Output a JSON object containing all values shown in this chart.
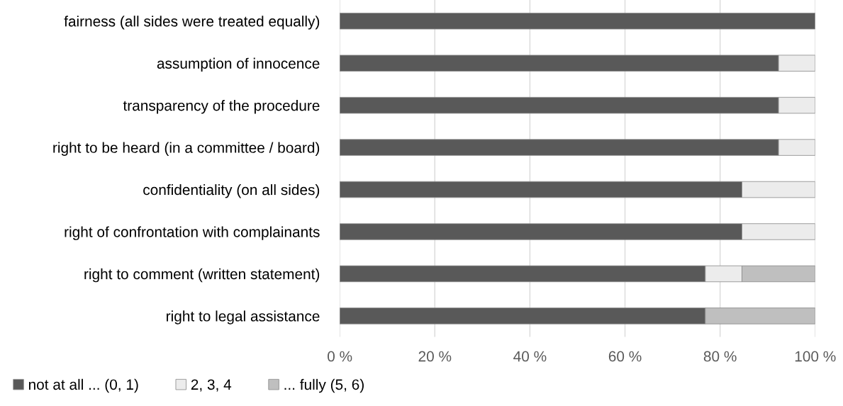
{
  "chart_data": {
    "type": "bar",
    "orientation": "horizontal",
    "stacked": true,
    "categories": [
      "fairness (all sides were treated equally)",
      "assumption of innocence",
      "transparency of the procedure",
      "right to be heard (in a committee / board)",
      "confidentiality (on all sides)",
      "right of confrontation with complainants",
      "right to comment (written statement)",
      "right to legal assistance"
    ],
    "series": [
      {
        "name": "not at all ... (0, 1)",
        "color": "#595959",
        "values": [
          100,
          92.3,
          92.3,
          92.3,
          84.6,
          84.6,
          76.9,
          76.9
        ]
      },
      {
        "name": "2, 3, 4",
        "color": "#ececec",
        "values": [
          0,
          7.7,
          7.7,
          7.7,
          15.4,
          15.4,
          7.7,
          0
        ]
      },
      {
        "name": "... fully (5, 6)",
        "color": "#bfbfbf",
        "values": [
          0,
          0,
          0,
          0,
          0,
          0,
          15.4,
          23.1
        ]
      }
    ],
    "xlim": [
      0,
      100
    ],
    "xticks": [
      {
        "value": 0,
        "label": "0 %"
      },
      {
        "value": 20,
        "label": "20 %"
      },
      {
        "value": 40,
        "label": "40 %"
      },
      {
        "value": 60,
        "label": "60 %"
      },
      {
        "value": 80,
        "label": "80 %"
      },
      {
        "value": 100,
        "label": "100 %"
      }
    ],
    "grid": "x",
    "legend": "bottom left"
  }
}
